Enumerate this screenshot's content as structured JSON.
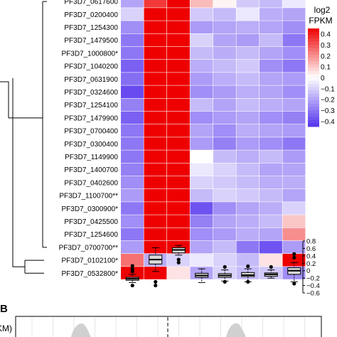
{
  "chart_data": [
    {
      "type": "heatmap",
      "rows": [
        "PF3D7_0617600",
        "PF3D7_0200400",
        "PF3D7_1254300",
        "PF3D7_1479500",
        "PF3D7_1000800*",
        "PF3D7_1040200",
        "PF3D7_0631900",
        "PF3D7_0324600",
        "PF3D7_1254100",
        "PF3D7_1479900",
        "PF3D7_0700400",
        "PF3D7_0300400",
        "PF3D7_1149900",
        "PF3D7_1400700",
        "PF3D7_0402600",
        "PF3D7_1100700**",
        "PF3D7_0300900*",
        "PF3D7_0425500",
        "PF3D7_1254600",
        "PF3D7_0700700**",
        "PF3D7_0102100*",
        "PF3D7_0532800*"
      ],
      "columns": 8,
      "values": [
        [
          -0.2,
          0.35,
          0.45,
          0.12,
          0.02,
          -0.12,
          -0.15,
          -0.05
        ],
        [
          -0.1,
          0.45,
          0.45,
          -0.12,
          -0.15,
          -0.05,
          -0.18,
          -0.2
        ],
        [
          -0.25,
          0.45,
          0.45,
          -0.22,
          -0.2,
          -0.18,
          -0.2,
          -0.25
        ],
        [
          -0.3,
          0.45,
          0.45,
          -0.1,
          -0.2,
          -0.22,
          -0.15,
          -0.3
        ],
        [
          -0.3,
          0.45,
          0.45,
          -0.15,
          -0.18,
          -0.15,
          -0.2,
          -0.25
        ],
        [
          -0.35,
          0.45,
          0.45,
          -0.18,
          -0.15,
          -0.12,
          -0.25,
          -0.3
        ],
        [
          -0.32,
          0.45,
          0.45,
          -0.22,
          -0.18,
          -0.15,
          -0.2,
          -0.22
        ],
        [
          -0.4,
          0.45,
          0.45,
          -0.25,
          -0.22,
          -0.18,
          -0.2,
          -0.25
        ],
        [
          -0.28,
          0.45,
          0.45,
          -0.15,
          -0.2,
          -0.15,
          -0.18,
          -0.2
        ],
        [
          -0.35,
          0.45,
          0.45,
          -0.25,
          -0.22,
          -0.2,
          -0.25,
          -0.28
        ],
        [
          -0.3,
          0.45,
          0.45,
          -0.2,
          -0.25,
          -0.18,
          -0.2,
          -0.22
        ],
        [
          -0.3,
          0.45,
          0.45,
          -0.22,
          -0.28,
          -0.22,
          -0.25,
          -0.3
        ],
        [
          -0.3,
          0.45,
          0.45,
          0.0,
          -0.15,
          -0.18,
          -0.15,
          -0.22
        ],
        [
          -0.28,
          0.45,
          0.45,
          -0.05,
          -0.1,
          -0.15,
          -0.2,
          -0.2
        ],
        [
          -0.25,
          0.45,
          0.45,
          -0.1,
          -0.12,
          -0.15,
          -0.18,
          -0.18
        ],
        [
          -0.22,
          0.45,
          0.45,
          -0.15,
          -0.1,
          -0.12,
          -0.15,
          -0.2
        ],
        [
          -0.3,
          0.45,
          0.45,
          -0.38,
          -0.25,
          -0.2,
          -0.18,
          -0.1
        ],
        [
          -0.25,
          0.45,
          0.45,
          -0.28,
          -0.2,
          -0.18,
          -0.15,
          0.1
        ],
        [
          -0.3,
          0.45,
          0.45,
          -0.25,
          -0.22,
          -0.18,
          -0.2,
          0.2
        ],
        [
          -0.22,
          0.45,
          0.45,
          -0.2,
          -0.15,
          -0.3,
          -0.38,
          -0.22
        ],
        [
          0.25,
          -0.18,
          -0.1,
          -0.05,
          -0.1,
          -0.15,
          0.05,
          0.45
        ],
        [
          0.45,
          0.45,
          0.05,
          -0.2,
          -0.1,
          -0.15,
          -0.12,
          -0.25
        ]
      ],
      "colorbar": {
        "title_line1": "log2",
        "title_line2": "FPKM",
        "ticks": [
          "0.4",
          "0.3",
          "0.2",
          "0.1",
          "0",
          "−0.1",
          "−0.2",
          "−0.3",
          "−0.4"
        ],
        "range": [
          -0.45,
          0.45
        ],
        "high_color": "#ee0000",
        "mid_color": "#ffffff",
        "low_color": "#5533ee"
      }
    },
    {
      "type": "box",
      "ylim": [
        -0.6,
        0.8
      ],
      "yticks": [
        "0.8",
        "0.6",
        "0.4",
        "0.2",
        "0",
        "−0.2",
        "−0.4",
        "−0.6"
      ],
      "boxes": [
        {
          "q1": -0.26,
          "median": -0.22,
          "q3": -0.18,
          "whisker_low": -0.32,
          "whisker_high": -0.1,
          "outliers": [
            -0.02,
            0.05,
            0.13,
            -0.4
          ]
        },
        {
          "q1": 0.18,
          "median": 0.3,
          "q3": 0.42,
          "whisker_low": -0.02,
          "whisker_high": 0.62,
          "outliers": [
            -0.3,
            -0.4
          ]
        },
        {
          "q1": 0.48,
          "median": 0.56,
          "q3": 0.62,
          "whisker_low": 0.42,
          "whisker_high": 0.68,
          "outliers": [
            0.3,
            0.22
          ]
        },
        {
          "q1": -0.18,
          "median": -0.13,
          "q3": -0.07,
          "whisker_low": -0.32,
          "whisker_high": 0.05,
          "outliers": []
        },
        {
          "q1": -0.18,
          "median": -0.13,
          "q3": -0.08,
          "whisker_low": -0.28,
          "whisker_high": 0.02,
          "outliers": [
            0.1,
            -0.3
          ]
        },
        {
          "q1": -0.16,
          "median": -0.12,
          "q3": -0.05,
          "whisker_low": -0.3,
          "whisker_high": 0.05,
          "outliers": [
            0.12,
            -0.3
          ]
        },
        {
          "q1": -0.15,
          "median": -0.1,
          "q3": -0.06,
          "whisker_low": -0.2,
          "whisker_high": 0.02,
          "outliers": [
            0.1
          ]
        },
        {
          "q1": -0.1,
          "median": 0.0,
          "q3": 0.08,
          "whisker_low": -0.3,
          "whisker_high": 0.22,
          "outliers": [
            0.35,
            0.45,
            -0.35
          ]
        }
      ]
    }
  ],
  "panel_b_label": "B",
  "panel_b_ylabel": "KM)"
}
